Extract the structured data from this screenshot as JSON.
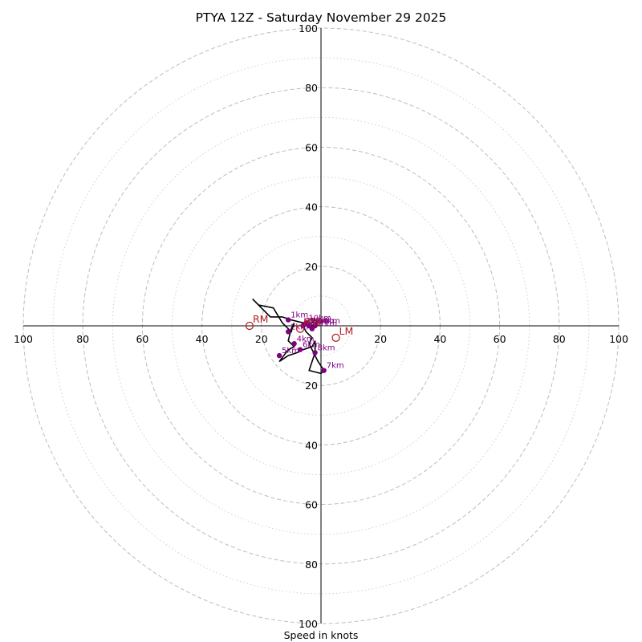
{
  "chart_data": {
    "type": "hodograph",
    "title": "PTYA 12Z - Saturday November 29 2025",
    "xlabel": "Speed in knots",
    "units": "knots",
    "range": [
      -100,
      100
    ],
    "major_rings": [
      20,
      40,
      60,
      80,
      100
    ],
    "minor_rings": [
      10,
      30,
      50,
      70,
      90
    ],
    "tick_labels": {
      "left": [
        "100",
        "80",
        "60",
        "40",
        "20"
      ],
      "right": [
        "20",
        "40",
        "60",
        "80",
        "100"
      ],
      "top": [
        "20",
        "40",
        "60",
        "80",
        "100"
      ],
      "bottom": [
        "20",
        "40",
        "60",
        "80",
        "100"
      ]
    },
    "trace": [
      [
        -1,
        1
      ],
      [
        -2,
        2
      ],
      [
        -4,
        0
      ],
      [
        -6,
        1
      ],
      [
        -10,
        2
      ],
      [
        -13,
        3
      ],
      [
        -17,
        3
      ],
      [
        -23,
        9
      ],
      [
        -21,
        7
      ],
      [
        -16,
        6
      ],
      [
        -13,
        1
      ],
      [
        -10,
        -2
      ],
      [
        -9,
        1
      ],
      [
        -10,
        -1
      ],
      [
        -11,
        -5
      ],
      [
        -9,
        -7
      ],
      [
        -11,
        -8
      ],
      [
        -14,
        -12
      ],
      [
        -11,
        -10
      ],
      [
        -8,
        -9
      ],
      [
        -6,
        -8
      ],
      [
        -3,
        -7
      ],
      [
        -2,
        -5
      ],
      [
        -2,
        -9
      ],
      [
        -4,
        -15
      ],
      [
        0,
        -16
      ],
      [
        1,
        -15
      ],
      [
        -1,
        -12
      ],
      [
        -3,
        -8
      ],
      [
        -4,
        -6
      ],
      [
        -3,
        -4
      ],
      [
        -5,
        -2
      ],
      [
        -6,
        0
      ],
      [
        -4,
        1
      ],
      [
        -3,
        0
      ],
      [
        -2,
        1
      ],
      [
        -1,
        0
      ]
    ],
    "height_points": [
      {
        "label": "1km",
        "u": -11,
        "v": 2
      },
      {
        "label": "2km",
        "u": -11,
        "v": -2
      },
      {
        "label": "3km",
        "u": -6,
        "v": 0
      },
      {
        "label": "4km",
        "u": -9,
        "v": -6
      },
      {
        "label": "5km",
        "u": -14,
        "v": -10
      },
      {
        "label": "6km",
        "u": -7,
        "v": -8
      },
      {
        "label": "7km",
        "u": 1,
        "v": -15
      },
      {
        "label": "8km",
        "u": -2,
        "v": -9
      },
      {
        "label": "9km",
        "u": -4,
        "v": 0
      },
      {
        "label": "10km",
        "u": -5,
        "v": 1
      },
      {
        "label": "11km",
        "u": -3,
        "v": -1
      },
      {
        "label": "12km",
        "u": -6,
        "v": 0
      },
      {
        "label": "13km",
        "u": -4,
        "v": 0
      },
      {
        "label": "14km",
        "u": -2,
        "v": 0
      }
    ],
    "storm_motions": [
      {
        "label": "RM",
        "u": -24,
        "v": 0
      },
      {
        "label": "LM",
        "u": 5,
        "v": -4
      },
      {
        "label": "MW",
        "u": -7,
        "v": -1
      }
    ],
    "colors": {
      "trace": "#000000",
      "points": "#800080",
      "motion": "#b22222",
      "ring": "#bdbdbd"
    }
  }
}
